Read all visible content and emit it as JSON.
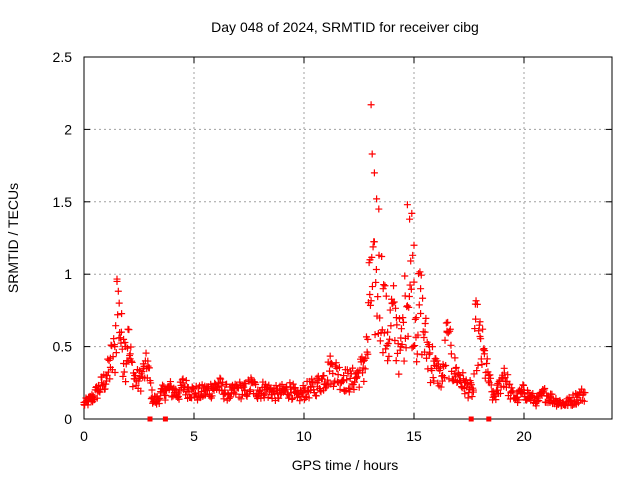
{
  "chart_data": {
    "type": "scatter",
    "title": "Day 048 of 2024, SRMTID for receiver cibg",
    "xlabel": "GPS time / hours",
    "ylabel": "SRMTID / TECUs",
    "xlim": [
      0,
      24
    ],
    "ylim": [
      0,
      2.5
    ],
    "xticks": [
      "0",
      "5",
      "10",
      "15",
      "20"
    ],
    "yticks": [
      "0",
      "0.5",
      "1",
      "1.5",
      "2",
      "2.5"
    ],
    "grid": true,
    "marker": "plus",
    "color": "#ff0000",
    "series": [
      {
        "name": "SRMTID",
        "x": [
          0.0,
          0.2,
          0.4,
          0.6,
          0.8,
          1.0,
          1.2,
          1.4,
          1.5,
          1.6,
          1.7,
          1.8,
          1.9,
          2.0,
          2.1,
          2.3,
          2.5,
          2.7,
          2.9,
          3.1,
          3.3,
          3.5,
          3.7,
          3.9,
          4.1,
          4.3,
          4.5,
          4.7,
          4.9,
          5.2,
          5.5,
          5.8,
          6.1,
          6.4,
          6.7,
          7.0,
          7.3,
          7.6,
          7.9,
          8.2,
          8.5,
          8.8,
          9.1,
          9.4,
          9.7,
          10.0,
          10.3,
          10.6,
          10.9,
          11.2,
          11.5,
          11.8,
          12.1,
          12.4,
          12.7,
          12.9,
          13.0,
          13.05,
          13.1,
          13.2,
          13.3,
          13.4,
          13.6,
          13.8,
          14.0,
          14.2,
          14.4,
          14.6,
          14.7,
          14.8,
          14.9,
          15.0,
          15.1,
          15.3,
          15.5,
          15.7,
          15.9,
          16.1,
          16.3,
          16.5,
          16.7,
          16.9,
          17.1,
          17.3,
          17.5,
          17.7,
          17.8,
          18.0,
          18.2,
          18.4,
          18.6,
          18.8,
          19.1,
          19.4,
          19.7,
          20.0,
          20.3,
          20.6,
          20.9,
          21.2,
          21.5,
          21.8,
          22.1,
          22.4,
          22.7
        ],
        "y": [
          0.1,
          0.12,
          0.15,
          0.2,
          0.25,
          0.3,
          0.42,
          0.5,
          0.95,
          0.8,
          0.6,
          0.55,
          0.5,
          0.62,
          0.45,
          0.3,
          0.28,
          0.35,
          0.4,
          0.15,
          0.12,
          0.18,
          0.2,
          0.22,
          0.2,
          0.18,
          0.25,
          0.22,
          0.2,
          0.18,
          0.2,
          0.22,
          0.25,
          0.2,
          0.18,
          0.22,
          0.2,
          0.25,
          0.2,
          0.22,
          0.2,
          0.18,
          0.2,
          0.22,
          0.15,
          0.2,
          0.22,
          0.25,
          0.3,
          0.38,
          0.35,
          0.3,
          0.28,
          0.32,
          0.4,
          0.55,
          1.1,
          2.17,
          1.83,
          1.7,
          1.52,
          1.45,
          0.9,
          0.6,
          0.8,
          0.7,
          0.5,
          0.85,
          1.48,
          1.38,
          1.42,
          1.2,
          0.7,
          0.9,
          0.6,
          0.5,
          0.4,
          0.35,
          0.3,
          0.6,
          0.45,
          0.35,
          0.3,
          0.25,
          0.22,
          0.2,
          0.69,
          0.57,
          0.45,
          0.3,
          0.15,
          0.2,
          0.35,
          0.18,
          0.15,
          0.2,
          0.15,
          0.12,
          0.18,
          0.15,
          0.12,
          0.1,
          0.12,
          0.15,
          0.18
        ]
      }
    ],
    "zero_markers_x": [
      3.0,
      3.7,
      17.6,
      18.4
    ]
  }
}
